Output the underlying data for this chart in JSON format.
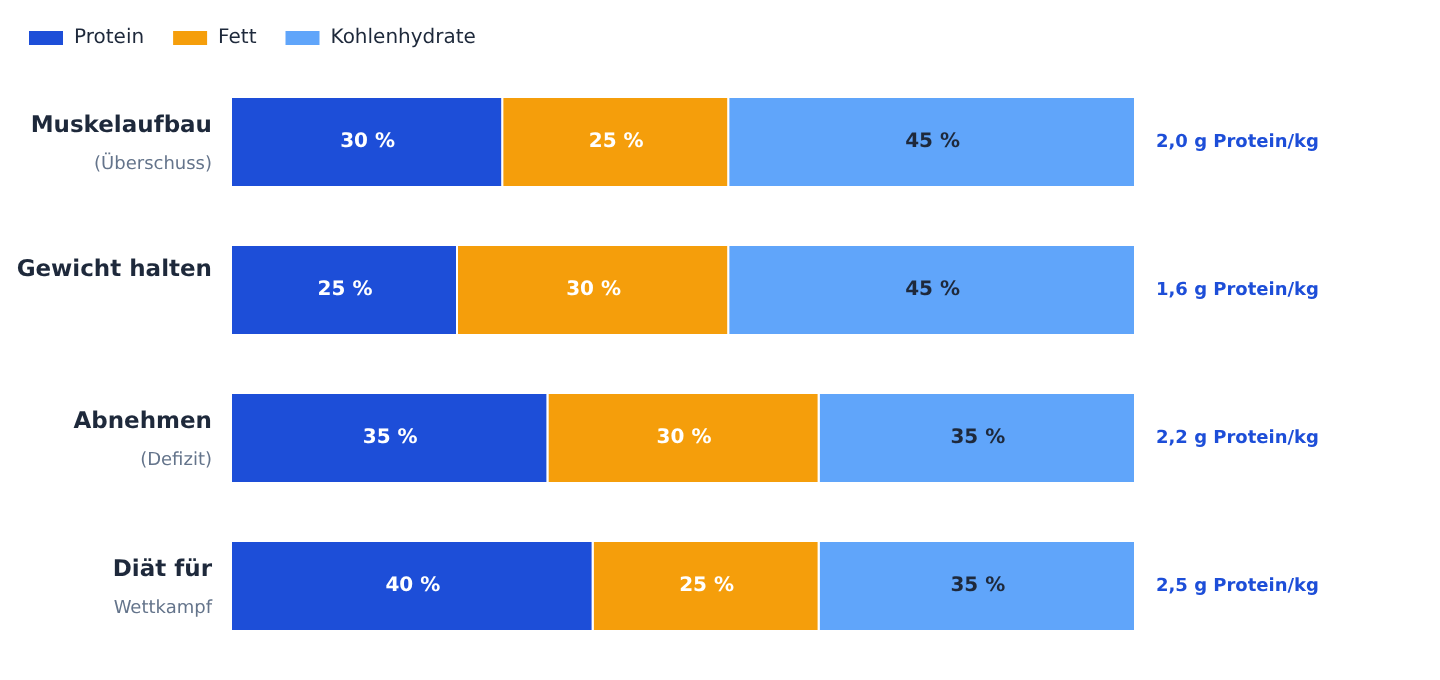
{
  "chart_data": {
    "type": "bar",
    "orientation": "horizontal",
    "stacked": true,
    "categories": [
      "Muskelaufbau\n(Überschuss)",
      "Gewicht halten",
      "Abnehmen\n(Defizit)",
      "Diät für\nWettkampf"
    ],
    "series": [
      {
        "name": "Protein",
        "color": "#1d4ed8",
        "values": [
          30,
          25,
          35,
          40
        ],
        "value_labels": [
          "30 %",
          "25 %",
          "35 %",
          "40 %"
        ]
      },
      {
        "name": "Fett",
        "color": "#f59e0b",
        "values": [
          25,
          30,
          30,
          25
        ],
        "value_labels": [
          "25 %",
          "30 %",
          "30 %",
          "25 %"
        ]
      },
      {
        "name": "Kohlenhydrate",
        "color": "#60a5fa",
        "values": [
          45,
          45,
          35,
          35
        ],
        "value_labels": [
          "45 %",
          "45 %",
          "35 %",
          "35 %"
        ]
      }
    ],
    "xlim": [
      0,
      100
    ],
    "tick_labels": "y",
    "legend": "top left",
    "annotations": [
      "2,0 g Protein/kg",
      "1,6 g Protein/kg",
      "2,2 g Protein/kg",
      "2,5 g Protein/kg"
    ]
  }
}
